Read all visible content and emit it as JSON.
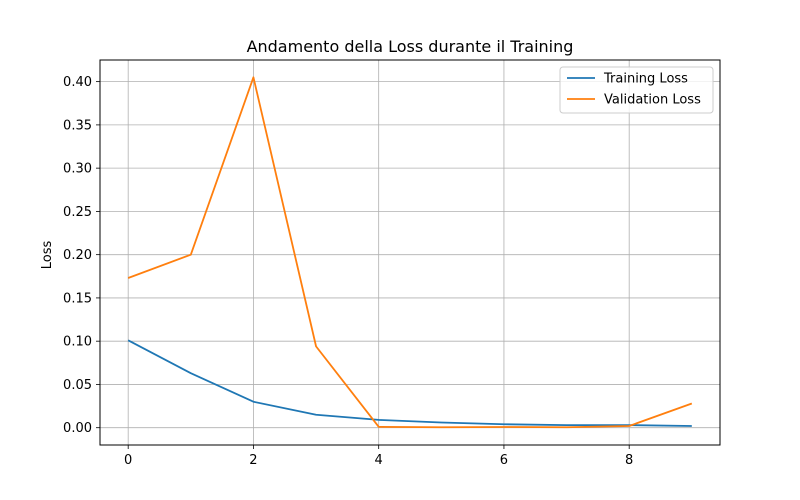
{
  "chart_data": {
    "type": "line",
    "title": "Andamento della Loss durante il Training",
    "xlabel": "",
    "ylabel": "Loss",
    "x": [
      0,
      1,
      2,
      3,
      4,
      5,
      6,
      7,
      8,
      9
    ],
    "series": [
      {
        "name": "Training Loss",
        "color": "#1f77b4",
        "values": [
          0.101,
          0.063,
          0.03,
          0.015,
          0.009,
          0.006,
          0.004,
          0.003,
          0.003,
          0.002
        ]
      },
      {
        "name": "Validation Loss",
        "color": "#ff7f0e",
        "values": [
          0.173,
          0.2,
          0.405,
          0.094,
          0.001,
          0.0005,
          0.0008,
          0.0005,
          0.002,
          0.028
        ]
      }
    ],
    "xlim": [
      -0.45,
      9.45
    ],
    "ylim": [
      -0.02,
      0.425
    ],
    "x_ticks": [
      "0",
      "2",
      "4",
      "6",
      "8"
    ],
    "y_ticks": [
      "0.00",
      "0.05",
      "0.10",
      "0.15",
      "0.20",
      "0.25",
      "0.30",
      "0.35",
      "0.40"
    ],
    "grid": true,
    "legend_position": "top-right"
  }
}
